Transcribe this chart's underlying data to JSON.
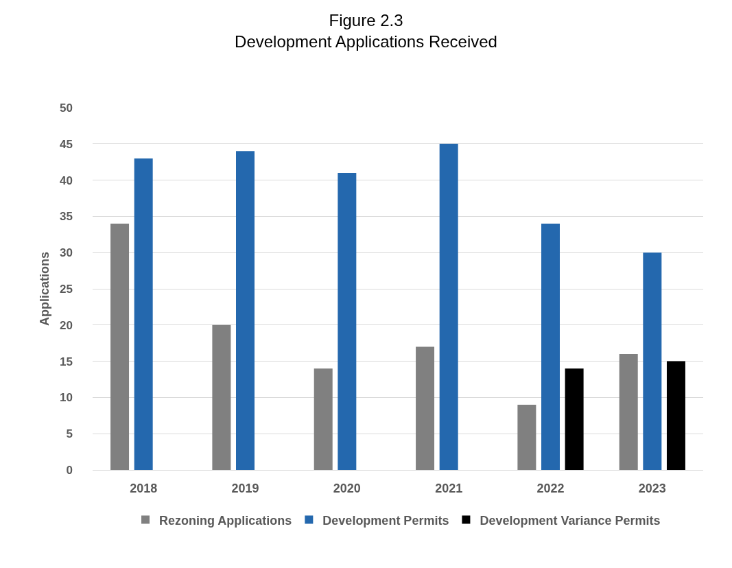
{
  "chart_data": {
    "type": "bar",
    "title": "Figure 2.3\nDevelopment Applications Received",
    "ylabel": "Applications",
    "categories": [
      "2018",
      "2019",
      "2020",
      "2021",
      "2022",
      "2023"
    ],
    "series": [
      {
        "name": "Rezoning Applications",
        "color": "#808080",
        "values": [
          34,
          20,
          14,
          17,
          9,
          16
        ]
      },
      {
        "name": "Development Permits",
        "color": "#2468ae",
        "values": [
          43,
          44,
          41,
          45,
          34,
          30
        ]
      },
      {
        "name": "Development Variance Permits",
        "color": "#000000",
        "values": [
          null,
          null,
          null,
          null,
          14,
          15
        ]
      }
    ],
    "ylim": [
      0,
      50
    ],
    "yticks": [
      0,
      5,
      10,
      15,
      20,
      25,
      30,
      35,
      40,
      45,
      50
    ],
    "grid": "y",
    "legend": "bottom"
  }
}
